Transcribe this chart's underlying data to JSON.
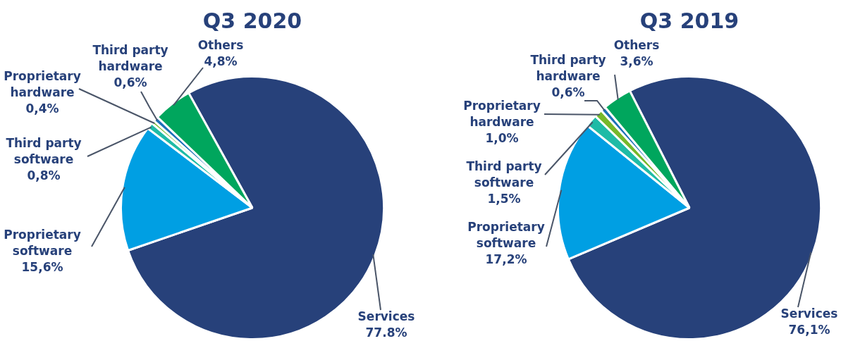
{
  "chart_data": [
    {
      "type": "pie",
      "title": "Q3 2020",
      "categories": [
        "Services",
        "Proprietary software",
        "Third party software",
        "Proprietary hardware",
        "Third party hardware",
        "Others"
      ],
      "values": [
        77.8,
        15.6,
        0.8,
        0.4,
        0.6,
        4.8
      ],
      "colors": [
        "#27417a",
        "#009fe3",
        "#1fbba6",
        "#76b82a",
        "#1d71b8",
        "#00a65d"
      ],
      "value_labels": [
        "77.8%",
        "15,6%",
        "0,8%",
        "0,4%",
        "0,6%",
        "4,8%"
      ]
    },
    {
      "type": "pie",
      "title": "Q3 2019",
      "categories": [
        "Services",
        "Proprietary software",
        "Third party software",
        "Proprietary hardware",
        "Third party hardware",
        "Others"
      ],
      "values": [
        76.1,
        17.2,
        1.5,
        1.0,
        0.6,
        3.6
      ],
      "colors": [
        "#27417a",
        "#009fe3",
        "#1fbba6",
        "#76b82a",
        "#1d71b8",
        "#00a65d"
      ],
      "value_labels": [
        "76,1%",
        "17,2%",
        "1,5%",
        "1,0%",
        "0,6%",
        "3,6%"
      ]
    }
  ]
}
